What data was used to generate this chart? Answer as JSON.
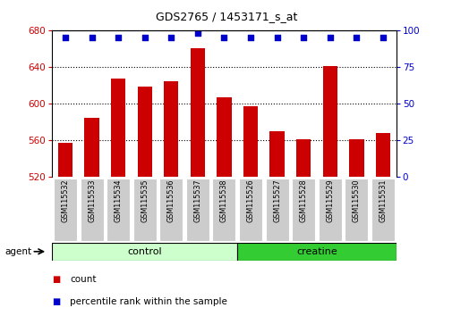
{
  "title": "GDS2765 / 1453171_s_at",
  "samples": [
    "GSM115532",
    "GSM115533",
    "GSM115534",
    "GSM115535",
    "GSM115536",
    "GSM115537",
    "GSM115538",
    "GSM115526",
    "GSM115527",
    "GSM115528",
    "GSM115529",
    "GSM115530",
    "GSM115531"
  ],
  "counts": [
    557,
    584,
    627,
    618,
    624,
    660,
    607,
    597,
    570,
    561,
    641,
    561,
    568
  ],
  "percentile_ranks": [
    95,
    95,
    95,
    95,
    95,
    98,
    95,
    95,
    95,
    95,
    95,
    95,
    95
  ],
  "ylim_left": [
    520,
    680
  ],
  "ylim_right": [
    0,
    100
  ],
  "yticks_left": [
    520,
    560,
    600,
    640,
    680
  ],
  "yticks_right": [
    0,
    25,
    50,
    75,
    100
  ],
  "bar_color": "#cc0000",
  "dot_color": "#0000cc",
  "control_count": 7,
  "creatine_count": 6,
  "control_label": "control",
  "creatine_label": "creatine",
  "agent_label": "agent",
  "legend_count_label": "count",
  "legend_pct_label": "percentile rank within the sample",
  "control_bg": "#ccffcc",
  "creatine_bg": "#33cc33",
  "xticklabel_bg": "#cccccc",
  "bar_width": 0.55
}
